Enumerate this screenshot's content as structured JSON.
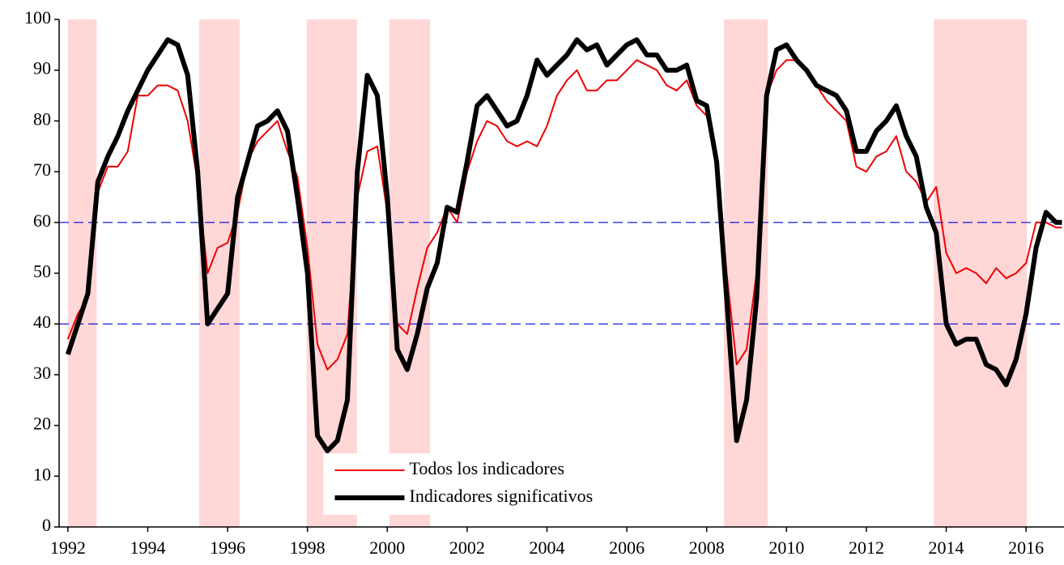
{
  "chart_data": {
    "type": "line",
    "x": [
      1992,
      1992.25,
      1992.5,
      1992.75,
      1993,
      1993.25,
      1993.5,
      1993.75,
      1994,
      1994.25,
      1994.5,
      1994.75,
      1995,
      1995.25,
      1995.5,
      1995.75,
      1996,
      1996.25,
      1996.5,
      1996.75,
      1997,
      1997.25,
      1997.5,
      1997.75,
      1998,
      1998.25,
      1998.5,
      1998.75,
      1999,
      1999.25,
      1999.5,
      1999.75,
      2000,
      2000.25,
      2000.5,
      2000.75,
      2001,
      2001.25,
      2001.5,
      2001.75,
      2002,
      2002.25,
      2002.5,
      2002.75,
      2003,
      2003.25,
      2003.5,
      2003.75,
      2004,
      2004.25,
      2004.5,
      2004.75,
      2005,
      2005.25,
      2005.5,
      2005.75,
      2006,
      2006.25,
      2006.5,
      2006.75,
      2007,
      2007.25,
      2007.5,
      2007.75,
      2008,
      2008.25,
      2008.5,
      2008.75,
      2009,
      2009.25,
      2009.5,
      2009.75,
      2010,
      2010.25,
      2010.5,
      2010.75,
      2011,
      2011.25,
      2011.5,
      2011.75,
      2012,
      2012.25,
      2012.5,
      2012.75,
      2013,
      2013.25,
      2013.5,
      2013.75,
      2014,
      2014.25,
      2014.5,
      2014.75,
      2015,
      2015.25,
      2015.5,
      2015.75,
      2016,
      2016.25,
      2016.5,
      2016.75,
      2016.9
    ],
    "series": [
      {
        "name": "Todos los indicadores",
        "color": "#ee0000",
        "width": 2,
        "values": [
          37,
          42,
          45,
          66,
          71,
          71,
          74,
          85,
          85,
          87,
          87,
          86,
          80,
          68,
          50,
          55,
          56,
          62,
          72,
          76,
          78,
          80,
          74,
          69,
          55,
          36,
          31,
          33,
          38,
          65,
          74,
          75,
          62,
          40,
          38,
          47,
          55,
          58,
          63,
          60,
          70,
          76,
          80,
          79,
          76,
          75,
          76,
          75,
          79,
          85,
          88,
          90,
          86,
          86,
          88,
          88,
          90,
          92,
          91,
          90,
          87,
          86,
          88,
          83,
          81,
          72,
          50,
          32,
          35,
          50,
          85,
          90,
          92,
          92,
          90,
          87,
          84,
          82,
          80,
          71,
          70,
          73,
          74,
          77,
          70,
          68,
          64,
          67,
          54,
          50,
          51,
          50,
          48,
          51,
          49,
          50,
          52,
          60,
          60,
          59,
          59
        ]
      },
      {
        "name": "Indicadores significativos",
        "color": "#000000",
        "width": 6,
        "values": [
          34,
          40,
          46,
          68,
          73,
          77,
          82,
          86,
          90,
          93,
          96,
          95,
          89,
          70,
          40,
          43,
          46,
          65,
          72,
          79,
          80,
          82,
          78,
          65,
          50,
          18,
          15,
          17,
          25,
          70,
          89,
          85,
          65,
          35,
          31,
          38,
          47,
          52,
          63,
          62,
          72,
          83,
          85,
          82,
          79,
          80,
          85,
          92,
          89,
          91,
          93,
          96,
          94,
          95,
          91,
          93,
          95,
          96,
          93,
          93,
          90,
          90,
          91,
          84,
          83,
          72,
          45,
          17,
          25,
          45,
          85,
          94,
          95,
          92,
          90,
          87,
          86,
          85,
          82,
          74,
          74,
          78,
          80,
          83,
          77,
          73,
          63,
          58,
          40,
          36,
          37,
          37,
          32,
          31,
          28,
          33,
          42,
          55,
          62,
          60,
          60
        ]
      }
    ],
    "shaded_ranges": [
      [
        1992,
        1992.72
      ],
      [
        1995.29,
        1996.3
      ],
      [
        1997.98,
        1999.24
      ],
      [
        2000.05,
        2001.07
      ],
      [
        2008.43,
        2009.53
      ],
      [
        2013.69,
        2016.02
      ]
    ],
    "shade_color": "#ffd7d7",
    "hlines": [
      40,
      60
    ],
    "hline_color": "#0000dd",
    "xlim": [
      1991.78,
      2016.95
    ],
    "xticks": [
      1992,
      1994,
      1996,
      1998,
      2000,
      2002,
      2004,
      2006,
      2008,
      2010,
      2012,
      2014,
      2016
    ],
    "ylim": [
      0,
      100
    ],
    "yticks": [
      0,
      10,
      20,
      30,
      40,
      50,
      60,
      70,
      80,
      90,
      100
    ],
    "legend": "lower center"
  }
}
